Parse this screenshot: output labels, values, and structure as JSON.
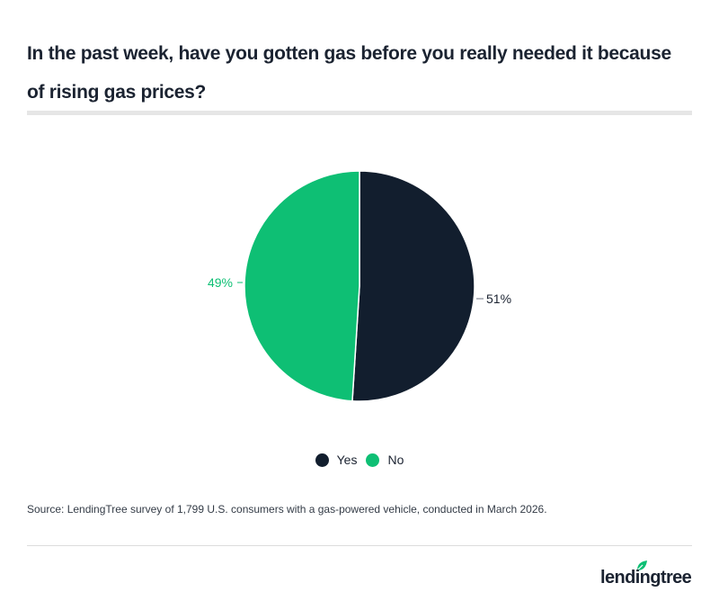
{
  "title": "In the past week, have you gotten gas before you really needed it because of rising gas prices?",
  "chart_data": {
    "type": "pie",
    "title": "In the past week, have you gotten gas before you really needed it because of rising gas prices?",
    "categories": [
      "Yes",
      "No"
    ],
    "values": [
      51,
      49
    ],
    "unit": "%",
    "colors": [
      "#121e2e",
      "#0ebf74"
    ],
    "data_labels": [
      "51%",
      "49%"
    ],
    "legend_position": "bottom",
    "start_angle": "top, clockwise"
  },
  "labels": {
    "yes": "51%",
    "no": "49%"
  },
  "legend": [
    {
      "label": "Yes",
      "color": "#121e2e"
    },
    {
      "label": "No",
      "color": "#0ebf74"
    }
  ],
  "source": "Source: LendingTree survey of 1,799 U.S. consumers with a gas-powered vehicle, conducted in March 2026.",
  "logo": {
    "text": "lendingtree"
  }
}
